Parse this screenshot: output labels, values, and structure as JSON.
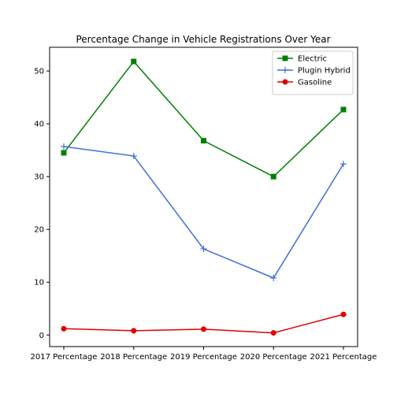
{
  "chart_data": {
    "type": "line",
    "title": "Percentage Change in Vehicle Registrations Over Year",
    "xlabel": "",
    "ylabel": "",
    "categories": [
      "2017 Percentage",
      "2018 Percentage",
      "2019 Percentage",
      "2020 Percentage",
      "2021 Percentage"
    ],
    "ylim": [
      -2.2,
      54.5
    ],
    "yticks": [
      0,
      10,
      20,
      30,
      40,
      50
    ],
    "grid": false,
    "legend_position": "top-right",
    "series": [
      {
        "name": "Electric",
        "values": [
          34.5,
          51.8,
          36.8,
          30.0,
          42.7
        ],
        "color": "#008000",
        "marker": "square"
      },
      {
        "name": "Plugin Hybrid",
        "values": [
          35.7,
          33.9,
          16.3,
          10.8,
          32.4
        ],
        "color": "#3f6fd8",
        "marker": "plus"
      },
      {
        "name": "Gasoline",
        "values": [
          1.2,
          0.8,
          1.1,
          0.4,
          3.9
        ],
        "color": "#e00000",
        "marker": "circle"
      }
    ]
  }
}
